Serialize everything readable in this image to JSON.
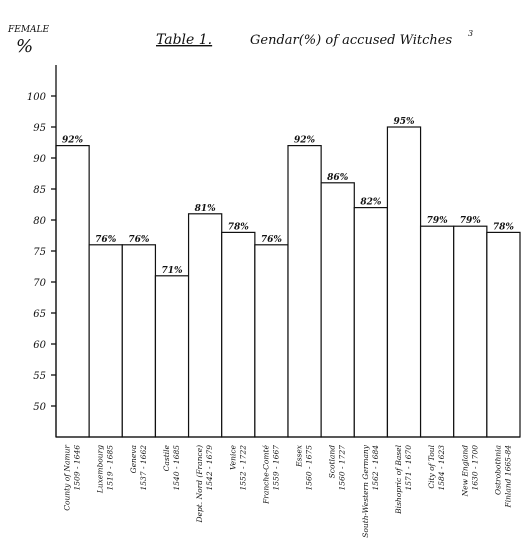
{
  "chart_data": {
    "type": "bar",
    "title": "Table 1.",
    "subtitle": "Gendar(%) of accused Witches",
    "title_superscript": "3",
    "ylabel_top": "FEMALE",
    "ylabel_unit": "%",
    "xlabel": "",
    "ylim": [
      45,
      105
    ],
    "yticks": [
      100,
      95,
      90,
      85,
      80,
      75,
      70,
      65,
      60,
      55,
      50
    ],
    "ytick_labels": [
      "100",
      "95",
      "90",
      "85",
      "80",
      "75",
      "70",
      "65",
      "60",
      "55",
      "50"
    ],
    "dashed_reference_lines": [
      70,
      60,
      50
    ],
    "grid": false,
    "legend": "none",
    "categories": [
      "County of Namur 1509 - 1646",
      "Luxembourg 1519 - 1685",
      "Geneva 1537 - 1662",
      "Castile 1540 - 1685",
      "Dept. Nord (France) 1542 - 1679",
      "Venice 1552 - 1722",
      "Franche-Comté 1559 - 1667",
      "Essex 1560 - 1675",
      "Scotland 1560 - 1727",
      "South-Western Germany 1562 - 1684",
      "Bishopric of Basel 1571 - 1670",
      "City of Toul 1584 - 1623",
      "New England 1630 - 1700",
      "Ostrobothnia Finland 1665 - 84"
    ],
    "category_lines": [
      [
        "County of Namur",
        "1509 - 1646"
      ],
      [
        "Luxembourg",
        "1519 - 1685"
      ],
      [
        "Geneva",
        "1537 - 1662"
      ],
      [
        "Castile",
        "1540 - 1685"
      ],
      [
        "Dept. Nord (France)",
        "1542 - 1679"
      ],
      [
        "Venice",
        "1552 - 1722"
      ],
      [
        "Franche-Comté",
        "1559 - 1667"
      ],
      [
        "Essex",
        "1560 - 1675"
      ],
      [
        "Scotland",
        "1560 - 1727"
      ],
      [
        "South-Western Germany",
        "1562 - 1684"
      ],
      [
        "Bishopric of Basel",
        "1571 - 1670"
      ],
      [
        "City of Toul",
        "1584 - 1623"
      ],
      [
        "New England",
        "1630 - 1700"
      ],
      [
        "Ostrobothnia",
        "Finland 1665-84"
      ]
    ],
    "values": [
      92,
      76,
      76,
      71,
      81,
      78,
      76,
      92,
      86,
      82,
      95,
      79,
      79,
      78
    ],
    "value_labels": [
      "92%",
      "76%",
      "76%",
      "71%",
      "81%",
      "78%",
      "76%",
      "92%",
      "86%",
      "82%",
      "95%",
      "79%",
      "79%",
      "78%"
    ],
    "colors": {
      "ink": "#111111",
      "bar_fill": "#ffffff",
      "background": "#ffffff"
    }
  }
}
